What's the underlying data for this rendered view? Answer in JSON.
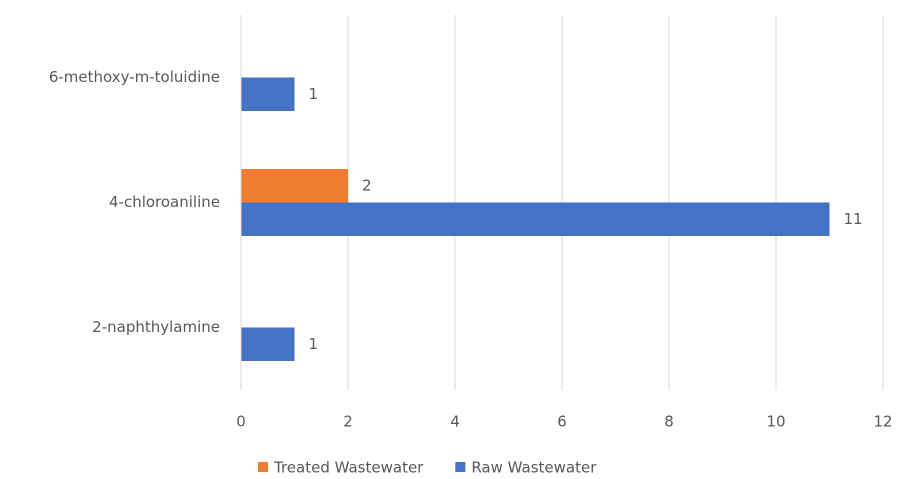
{
  "chart_data": {
    "type": "bar",
    "orientation": "horizontal",
    "categories": [
      "6-methoxy-m-toluidine",
      "4-chloroaniline",
      "2-naphthylamine"
    ],
    "series": [
      {
        "name": "Treated Wastewater",
        "color": "#ed7d31",
        "values": [
          null,
          2,
          null
        ]
      },
      {
        "name": "Raw Wastewater",
        "color": "#4472c4",
        "values": [
          1,
          11,
          1
        ]
      }
    ],
    "xlim": [
      0,
      12
    ],
    "xticks": [
      0,
      2,
      4,
      6,
      8,
      10,
      12
    ],
    "grid": true,
    "legend": "bottom"
  }
}
